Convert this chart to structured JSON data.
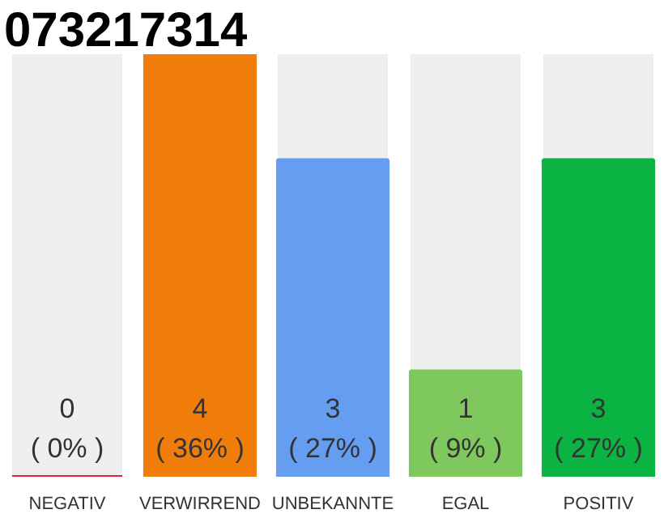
{
  "chart_data": {
    "type": "bar",
    "title": "073217314",
    "categories": [
      "NEGATIV",
      "VERWIRREND",
      "UNBEKANNTE",
      "EGAL",
      "POSITIV"
    ],
    "values": [
      0,
      4,
      3,
      1,
      3
    ],
    "colors": [
      "#e8203c",
      "#f07c0a",
      "#659df0",
      "#7ec85e",
      "#0bb343"
    ],
    "value_labels": [
      "0\n( 0% )",
      "4\n( 36% )",
      "3\n( 27% )",
      "1\n( 9% )",
      "3\n( 27% )"
    ],
    "tick_labels": "x"
  }
}
